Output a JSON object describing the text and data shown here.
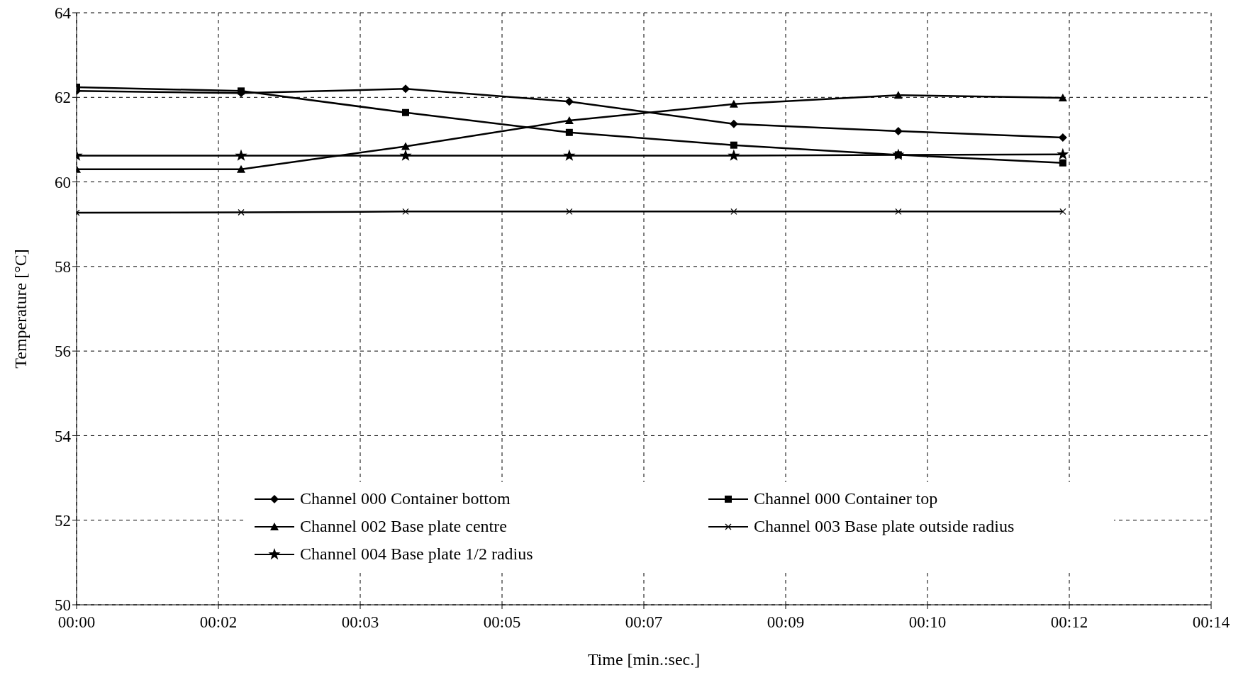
{
  "chart_data": {
    "type": "line",
    "xlabel": "Time [min.:sec.]",
    "ylabel": "Temperature [°C]",
    "x": [
      0,
      2.03,
      4.06,
      6.08,
      8.11,
      10.14,
      12.17
    ],
    "series": [
      {
        "name": "Channel 000 Container bottom",
        "color": "#000000",
        "marker": "diamond",
        "values": [
          62.15,
          62.1,
          62.2,
          61.9,
          61.37,
          61.2,
          61.05
        ]
      },
      {
        "name": "Channel 000 Container top",
        "color": "#000000",
        "marker": "square",
        "values": [
          62.24,
          62.15,
          61.64,
          61.17,
          60.87,
          60.64,
          60.45
        ]
      },
      {
        "name": "Channel 002 Base plate centre",
        "color": "#000000",
        "marker": "triangle",
        "values": [
          60.3,
          60.3,
          60.84,
          61.45,
          61.84,
          62.05,
          61.99
        ]
      },
      {
        "name": "Channel 003 Base plate outside radius",
        "color": "#000000",
        "marker": "cross",
        "values": [
          59.27,
          59.28,
          59.3,
          59.3,
          59.3,
          59.3,
          59.3
        ]
      },
      {
        "name": "Channel 004 Base plate 1/2 radius",
        "color": "#000000",
        "marker": "star",
        "values": [
          60.62,
          60.62,
          60.62,
          60.62,
          60.62,
          60.64,
          60.65
        ]
      }
    ],
    "xlim": [
      0,
      14
    ],
    "xticks": [
      {
        "value": 0,
        "label": "00:00"
      },
      {
        "value": 1.75,
        "label": "00:02"
      },
      {
        "value": 3.5,
        "label": "00:03"
      },
      {
        "value": 5.25,
        "label": "00:05"
      },
      {
        "value": 7,
        "label": "00:07"
      },
      {
        "value": 8.75,
        "label": "00:09"
      },
      {
        "value": 10.5,
        "label": "00:10"
      },
      {
        "value": 12.25,
        "label": "00:12"
      },
      {
        "value": 14,
        "label": "00:14"
      }
    ],
    "ylim": [
      50,
      64
    ],
    "yticks": [
      50,
      52,
      54,
      56,
      58,
      60,
      62,
      64
    ],
    "grid": true,
    "legend": "bottom",
    "line_style": "solid"
  }
}
